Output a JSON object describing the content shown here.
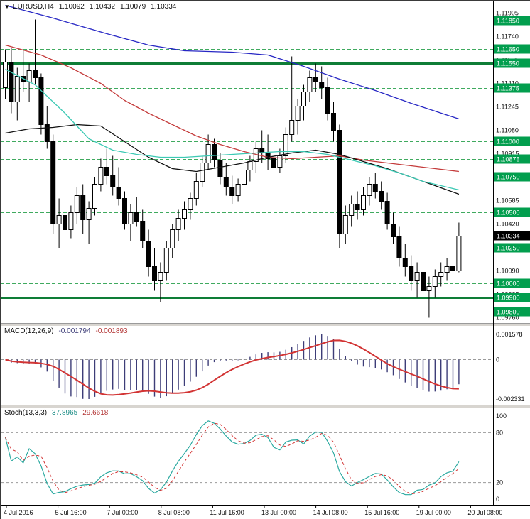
{
  "header": {
    "marker_icon": "▼",
    "symbol_period": "EURUSD,H4",
    "open": "1.10092",
    "high": "1.10432",
    "low": "1.10079",
    "close": "1.10334"
  },
  "price_axis": {
    "current": "1.10334"
  },
  "indicators": {
    "macd": {
      "label": "MACD(12,26,9)",
      "value_main": "-0.001794",
      "value_signal": "-0.001893"
    },
    "stoch": {
      "label": "Stoch(13,3,3)",
      "value_k": "37.8965",
      "value_d": "29.6618"
    }
  },
  "colors": {
    "level_dashed": "#3faa5f",
    "level_solid": "#0e7d36",
    "level_label_bg": "#029e4e",
    "bull": "#ffffff",
    "bear": "#000000",
    "candle_outline": "#000000",
    "macd_hist": "#3d3d78",
    "signal_red": "#d23434",
    "stoch_main": "#2aa9a0",
    "zero_line": "#9a9a9a",
    "axis_text": "#111111",
    "current_label_bg": "#000000"
  },
  "chart_data": [
    {
      "type": "candlestick",
      "symbol": "EURUSD",
      "timeframe": "H4",
      "ohlc_current": {
        "open": 1.10092,
        "high": 1.10432,
        "low": 1.10079,
        "close": 1.10334
      },
      "y_ticks": [
        "1.11905",
        "1.11740",
        "1.11575",
        "1.11410",
        "1.11245",
        "1.11080",
        "1.10915",
        "1.10750",
        "1.10585",
        "1.10420",
        "1.10255",
        "1.10090",
        "1.09925",
        "1.09760"
      ],
      "time_labels": [
        "4 Jul 2016",
        "5 Jul 16:00",
        "7 Jul 00:00",
        "8 Jul 08:00",
        "11 Jul 16:00",
        "13 Jul 00:00",
        "14 Jul 08:00",
        "15 Jul 16:00",
        "19 Jul 00:00",
        "20 Jul 08:00"
      ],
      "levels": [
        {
          "price": 1.1185,
          "label": "1.11850",
          "style": "dashed"
        },
        {
          "price": 1.1165,
          "label": "1.11650",
          "style": "dashed"
        },
        {
          "price": 1.1155,
          "label": "1.11550",
          "style": "solid"
        },
        {
          "price": 1.11375,
          "label": "1.11375",
          "style": "dashed"
        },
        {
          "price": 1.11,
          "label": "1.11000",
          "style": "dashed"
        },
        {
          "price": 1.10875,
          "label": "1.10875",
          "style": "dashed"
        },
        {
          "price": 1.1075,
          "label": "1.10750",
          "style": "dashed"
        },
        {
          "price": 1.105,
          "label": "1.10500",
          "style": "dashed"
        },
        {
          "price": 1.1025,
          "label": "1.10250",
          "style": "dashed"
        },
        {
          "price": 1.1,
          "label": "1.10000",
          "style": "dashed"
        },
        {
          "price": 1.099,
          "label": "1.09900",
          "style": "solid"
        },
        {
          "price": 1.098,
          "label": "1.09800",
          "style": "dashed"
        }
      ],
      "overlays": [
        {
          "name": "slow-ma-blue",
          "color": "#2727c4",
          "points": [
            [
              0,
              1.1196
            ],
            [
              8,
              1.1187
            ],
            [
              17,
              1.1176
            ],
            [
              24,
              1.1168
            ],
            [
              30,
              1.1164
            ],
            [
              38,
              1.1163
            ],
            [
              44,
              1.1161
            ],
            [
              50,
              1.1153
            ],
            [
              56,
              1.1144
            ],
            [
              62,
              1.1136
            ],
            [
              68,
              1.1127
            ],
            [
              76,
              1.1116
            ]
          ]
        },
        {
          "name": "medium-ma-red",
          "color": "#c43b3b",
          "points": [
            [
              0,
              1.1168
            ],
            [
              6,
              1.1161
            ],
            [
              11,
              1.1152
            ],
            [
              16,
              1.1141
            ],
            [
              20,
              1.1129
            ],
            [
              24,
              1.112
            ],
            [
              28,
              1.1112
            ],
            [
              32,
              1.1104
            ],
            [
              36,
              1.1098
            ],
            [
              40,
              1.1093
            ],
            [
              44,
              1.1089
            ],
            [
              48,
              1.1088
            ],
            [
              52,
              1.1089
            ],
            [
              56,
              1.109
            ],
            [
              60,
              1.1087
            ],
            [
              64,
              1.1085
            ],
            [
              68,
              1.1083
            ],
            [
              72,
              1.1081
            ],
            [
              76,
              1.1079
            ]
          ]
        },
        {
          "name": "fast-ma-black",
          "color": "#111111",
          "points": [
            [
              0,
              1.1106
            ],
            [
              4,
              1.1109
            ],
            [
              8,
              1.111
            ],
            [
              12,
              1.1112
            ],
            [
              16,
              1.1111
            ],
            [
              20,
              1.11
            ],
            [
              24,
              1.1089
            ],
            [
              28,
              1.1081
            ],
            [
              32,
              1.1079
            ],
            [
              36,
              1.1082
            ],
            [
              40,
              1.1085
            ],
            [
              44,
              1.1089
            ],
            [
              48,
              1.1092
            ],
            [
              52,
              1.1094
            ],
            [
              56,
              1.1091
            ],
            [
              60,
              1.1086
            ],
            [
              64,
              1.1081
            ],
            [
              68,
              1.1075
            ],
            [
              72,
              1.1069
            ],
            [
              76,
              1.1063
            ]
          ]
        },
        {
          "name": "ma-teal",
          "color": "#3cc9b4",
          "points": [
            [
              0,
              1.1151
            ],
            [
              5,
              1.114
            ],
            [
              10,
              1.112
            ],
            [
              14,
              1.1102
            ],
            [
              18,
              1.1094
            ],
            [
              22,
              1.1091
            ],
            [
              26,
              1.1089
            ],
            [
              30,
              1.1089
            ],
            [
              34,
              1.109
            ],
            [
              38,
              1.1091
            ],
            [
              42,
              1.1092
            ],
            [
              46,
              1.1093
            ],
            [
              50,
              1.1093
            ],
            [
              54,
              1.1091
            ],
            [
              58,
              1.1087
            ],
            [
              62,
              1.1083
            ],
            [
              66,
              1.1078
            ],
            [
              70,
              1.1072
            ],
            [
              76,
              1.1066
            ]
          ]
        }
      ],
      "candles": [
        [
          1.1138,
          1.1165,
          1.113,
          1.1156
        ],
        [
          1.1156,
          1.1166,
          1.112,
          1.1128
        ],
        [
          1.1128,
          1.1152,
          1.1115,
          1.1146
        ],
        [
          1.1146,
          1.1164,
          1.1135,
          1.1142
        ],
        [
          1.1142,
          1.1155,
          1.1128,
          1.115
        ],
        [
          1.115,
          1.1186,
          1.114,
          1.1145
        ],
        [
          1.1145,
          1.1148,
          1.1105,
          1.1112
        ],
        [
          1.1112,
          1.1125,
          1.1095,
          1.11
        ],
        [
          1.11,
          1.1105,
          1.1035,
          1.1042
        ],
        [
          1.1042,
          1.106,
          1.1025,
          1.1048
        ],
        [
          1.1048,
          1.1056,
          1.103,
          1.1038
        ],
        [
          1.1038,
          1.1055,
          1.1032,
          1.105
        ],
        [
          1.105,
          1.1068,
          1.1042,
          1.1062
        ],
        [
          1.1062,
          1.107,
          1.1035,
          1.1045
        ],
        [
          1.1045,
          1.1058,
          1.1028,
          1.1053
        ],
        [
          1.1053,
          1.1075,
          1.1048,
          1.107
        ],
        [
          1.107,
          1.1088,
          1.1065,
          1.1082
        ],
        [
          1.1082,
          1.1095,
          1.107,
          1.1076
        ],
        [
          1.1076,
          1.109,
          1.1062,
          1.1068
        ],
        [
          1.1068,
          1.1082,
          1.1055,
          1.106
        ],
        [
          1.106,
          1.1065,
          1.1038,
          1.1042
        ],
        [
          1.1042,
          1.1056,
          1.103,
          1.105
        ],
        [
          1.105,
          1.1061,
          1.104,
          1.1044
        ],
        [
          1.1044,
          1.1052,
          1.1025,
          1.103
        ],
        [
          1.103,
          1.1038,
          1.1005,
          1.1012
        ],
        [
          1.1012,
          1.1025,
          1.0995,
          1.1002
        ],
        [
          1.1002,
          1.1015,
          1.0987,
          1.1008
        ],
        [
          1.1008,
          1.103,
          1.1002,
          1.1025
        ],
        [
          1.1025,
          1.1042,
          1.1018,
          1.1038
        ],
        [
          1.1038,
          1.1052,
          1.103,
          1.1046
        ],
        [
          1.1046,
          1.1058,
          1.1038,
          1.1052
        ],
        [
          1.1052,
          1.1064,
          1.1045,
          1.106
        ],
        [
          1.106,
          1.1078,
          1.1055,
          1.1072
        ],
        [
          1.1072,
          1.109,
          1.1068,
          1.1085
        ],
        [
          1.1085,
          1.1105,
          1.108,
          1.1098
        ],
        [
          1.1098,
          1.1102,
          1.1082,
          1.1087
        ],
        [
          1.1087,
          1.1092,
          1.107,
          1.1075
        ],
        [
          1.1075,
          1.1085,
          1.1062,
          1.1068
        ],
        [
          1.1068,
          1.1076,
          1.1056,
          1.1062
        ],
        [
          1.1062,
          1.1074,
          1.1058,
          1.107
        ],
        [
          1.107,
          1.1084,
          1.1065,
          1.108
        ],
        [
          1.108,
          1.109,
          1.1072,
          1.1086
        ],
        [
          1.1086,
          1.11,
          1.1078,
          1.1095
        ],
        [
          1.1095,
          1.1108,
          1.1085,
          1.1092
        ],
        [
          1.1092,
          1.1105,
          1.108,
          1.1088
        ],
        [
          1.1088,
          1.1098,
          1.1075,
          1.1082
        ],
        [
          1.1082,
          1.1095,
          1.1078,
          1.109
        ],
        [
          1.109,
          1.111,
          1.1085,
          1.1105
        ],
        [
          1.1105,
          1.116,
          1.11,
          1.1115
        ],
        [
          1.1115,
          1.113,
          1.1105,
          1.1125
        ],
        [
          1.1125,
          1.114,
          1.1115,
          1.1135
        ],
        [
          1.1135,
          1.115,
          1.1128,
          1.1145
        ],
        [
          1.1145,
          1.1155,
          1.1135,
          1.1142
        ],
        [
          1.1142,
          1.1153,
          1.113,
          1.1138
        ],
        [
          1.1138,
          1.1145,
          1.1115,
          1.112
        ],
        [
          1.112,
          1.1128,
          1.11,
          1.1108
        ],
        [
          1.1108,
          1.1112,
          1.1025,
          1.1035
        ],
        [
          1.1035,
          1.1055,
          1.1028,
          1.1048
        ],
        [
          1.1048,
          1.1062,
          1.104,
          1.1056
        ],
        [
          1.1056,
          1.1065,
          1.1045,
          1.1052
        ],
        [
          1.1052,
          1.1068,
          1.1048,
          1.1062
        ],
        [
          1.1062,
          1.1075,
          1.1055,
          1.107
        ],
        [
          1.107,
          1.1078,
          1.106,
          1.1065
        ],
        [
          1.1065,
          1.1072,
          1.1052,
          1.1058
        ],
        [
          1.1058,
          1.1064,
          1.1038,
          1.1042
        ],
        [
          1.1042,
          1.105,
          1.1028,
          1.1033
        ],
        [
          1.1033,
          1.104,
          1.1012,
          1.1018
        ],
        [
          1.1018,
          1.1028,
          1.1005,
          1.1012
        ],
        [
          1.1012,
          1.102,
          1.0995,
          1.1002
        ],
        [
          1.1002,
          1.1015,
          1.099,
          1.1008
        ],
        [
          1.1008,
          1.1012,
          1.0987,
          1.0995
        ],
        [
          1.0995,
          1.1005,
          1.0976,
          1.0998
        ],
        [
          1.0998,
          1.101,
          1.099,
          1.1005
        ],
        [
          1.1005,
          1.1015,
          1.0998,
          1.1008
        ],
        [
          1.1008,
          1.1018,
          1.1002,
          1.1012
        ],
        [
          1.1012,
          1.102,
          1.1005,
          1.10092
        ],
        [
          1.10092,
          1.10432,
          1.10079,
          1.10334
        ]
      ]
    },
    {
      "type": "macd",
      "params": [
        12,
        26,
        9
      ],
      "y_ticks": [
        "0.001578",
        "0",
        "-0.002331"
      ],
      "current_macd": -0.001794,
      "current_signal": -0.001893
    },
    {
      "type": "stochastic",
      "params": [
        13,
        3,
        3
      ],
      "y_ticks": [
        "100",
        "80",
        "20",
        "0"
      ],
      "levels": [
        80,
        20
      ],
      "current_k": 37.8965,
      "current_d": 29.6618
    }
  ]
}
